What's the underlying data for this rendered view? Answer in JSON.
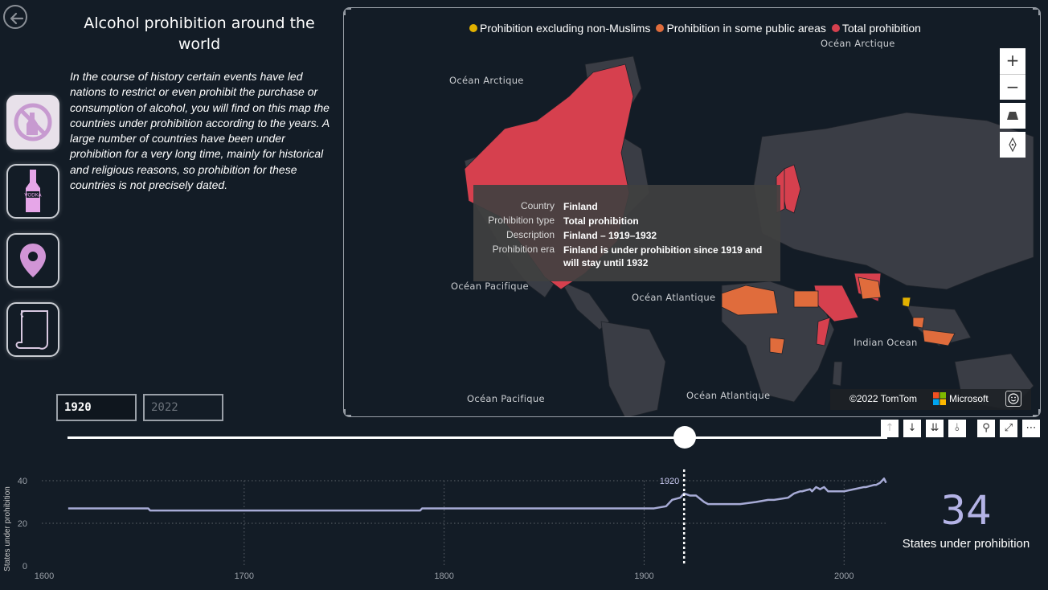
{
  "header": {
    "title": "Alcohol prohibition around the world",
    "intro": "In the course of history certain events have led nations to restrict or even prohibit the purchase or consumption of alcohol, you will find on this map the countries under prohibition according to the years. A large number of countries have been under prohibition for a very long time, mainly for historical and religious reasons, so prohibition for these countries is not precisely dated."
  },
  "nav": {
    "back_icon": "arrow-left-icon",
    "buttons": [
      {
        "icon": "no-alcohol-icon",
        "active": true
      },
      {
        "icon": "vodka-bottle-icon",
        "active": false
      },
      {
        "icon": "map-pin-icon",
        "active": false
      },
      {
        "icon": "scroll-icon",
        "active": false
      }
    ]
  },
  "filter": {
    "year_start": "1920",
    "year_end": "2022",
    "slider_start_value": 1920
  },
  "map": {
    "legend": [
      {
        "label": "Prohibition excluding non-Muslims",
        "color": "#e2b100"
      },
      {
        "label": "Prohibition in some public areas",
        "color": "#e06c3c"
      },
      {
        "label": "Total prohibition",
        "color": "#d6404e"
      }
    ],
    "oceans": [
      "Océan Arctique",
      "Océan Arctique",
      "Océan Pacifique",
      "Océan Atlantique",
      "Indian Ocean",
      "Océan Pacifique",
      "Océan Atlantique"
    ],
    "controls": [
      "+",
      "−"
    ],
    "tooltip": {
      "rows": [
        {
          "key": "Country",
          "value": "Finland"
        },
        {
          "key": "Prohibition type",
          "value": "Total prohibition"
        },
        {
          "key": "Description",
          "value": "Finland – 1919–1932"
        },
        {
          "key": "Prohibition era",
          "value": "Finland is under prohibition since 1919 and will stay until 1932"
        }
      ]
    },
    "attribution": "©2022 TomTom",
    "brand": "Microsoft",
    "colors": {
      "land": "#3a3d45",
      "total": "#d6404e",
      "partial": "#e06c3c",
      "muslim": "#e2b100"
    }
  },
  "toolbar": {
    "icons": [
      "arrow-up-icon",
      "arrow-down-icon",
      "double-arrow-down-icon",
      "drill-down-icon",
      "filter-icon",
      "focus-mode-icon",
      "more-options-icon"
    ]
  },
  "kpi": {
    "value": "34",
    "label": "States under prohibition"
  },
  "chart_data": {
    "type": "line",
    "ylabel": "States under prohibition",
    "xlabel": "",
    "xlim": [
      1600,
      2022
    ],
    "ylim": [
      0,
      40
    ],
    "x_ticks": [
      "1600",
      "1700",
      "1800",
      "1900",
      "2000"
    ],
    "y_ticks": [
      "0",
      "20",
      "40"
    ],
    "grid": true,
    "color": "#a7abd6",
    "marker_label": "1920",
    "marker_x": 1920,
    "series": [
      {
        "x": [
          1612,
          1652,
          1653,
          1788,
          1789,
          1905,
          1911,
          1914,
          1918,
          1920,
          1923,
          1926,
          1930,
          1932,
          1948,
          1956,
          1962,
          1965,
          1972,
          1975,
          1978,
          1979,
          1983,
          1984,
          1986,
          1988,
          1990,
          1992,
          2000,
          2010,
          2011,
          2015,
          2016,
          2018,
          2020,
          2021
        ],
        "y": [
          27,
          27,
          26,
          26,
          27,
          27,
          28,
          31,
          32,
          34,
          33,
          33,
          30,
          29,
          29,
          30,
          31,
          31,
          32,
          34,
          35,
          35,
          36,
          35,
          37,
          36,
          37,
          35,
          35,
          37,
          37,
          38,
          38,
          39,
          41,
          39
        ]
      }
    ]
  }
}
